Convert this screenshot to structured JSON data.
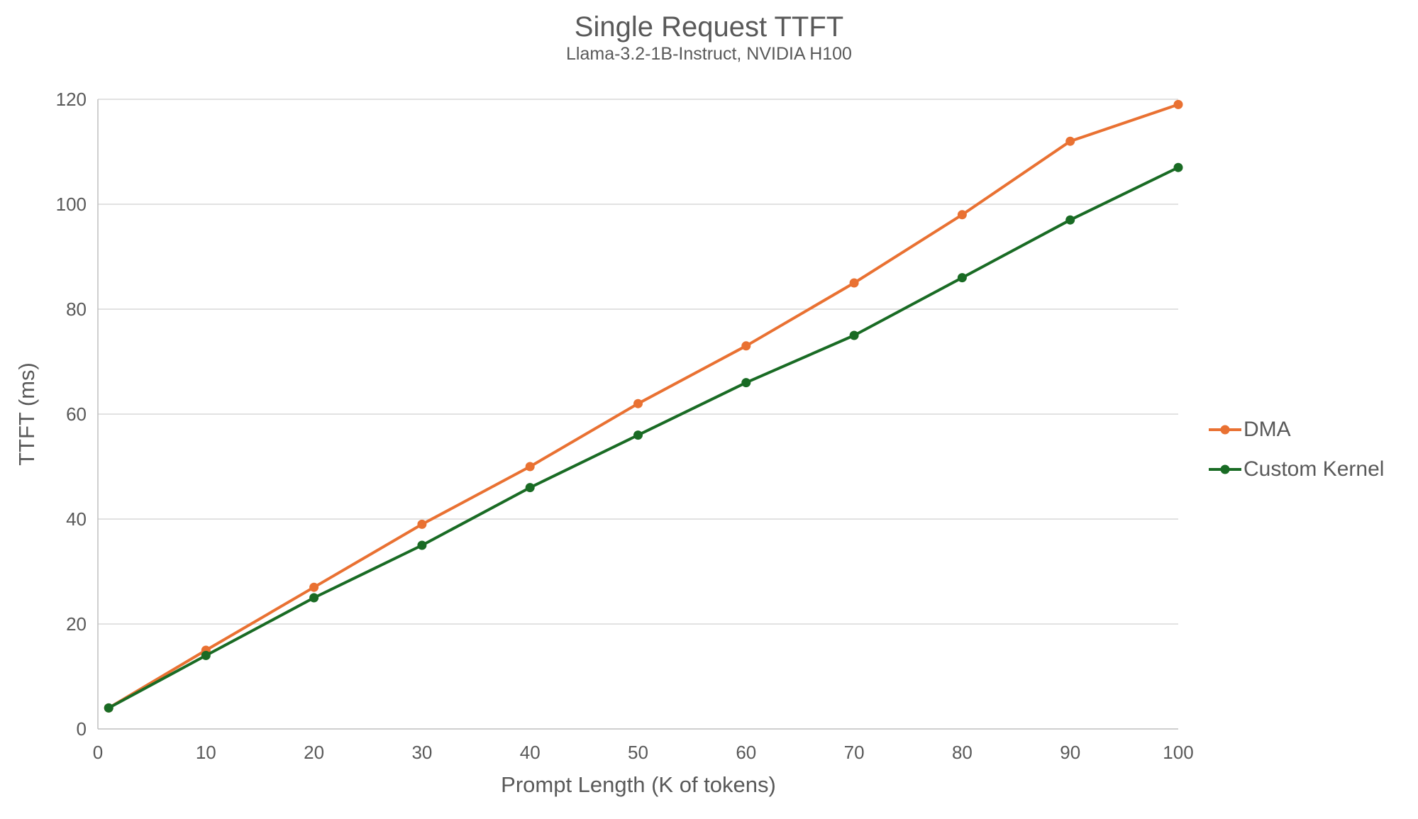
{
  "title": "Single Request TTFT",
  "subtitle": "Llama-3.2-1B-Instruct, NVIDIA H100",
  "chart_data": {
    "type": "line",
    "title": "Single Request TTFT",
    "subtitle": "Llama-3.2-1B-Instruct, NVIDIA H100",
    "xlabel": "Prompt Length (K of tokens)",
    "ylabel": "TTFT (ms)",
    "x": [
      1,
      10,
      20,
      30,
      40,
      50,
      60,
      70,
      80,
      90,
      100
    ],
    "series": [
      {
        "name": "DMA",
        "color": "#E97132",
        "values": [
          4,
          15,
          27,
          39,
          50,
          62,
          73,
          85,
          98,
          112,
          119
        ]
      },
      {
        "name": "Custom Kernel",
        "color": "#196B24",
        "values": [
          4,
          14,
          25,
          35,
          46,
          56,
          66,
          75,
          86,
          97,
          107
        ]
      }
    ],
    "xlim": [
      0,
      100
    ],
    "ylim": [
      0,
      120
    ],
    "x_ticks": [
      0,
      10,
      20,
      30,
      40,
      50,
      60,
      70,
      80,
      90,
      100
    ],
    "y_ticks": [
      0,
      20,
      40,
      60,
      80,
      100,
      120
    ],
    "grid": "horizontal",
    "legend_position": "right",
    "marker": "circle"
  },
  "colors": {
    "text": "#595959",
    "gridline": "#D9D9D9",
    "axis": "#BFBFBF",
    "background": "#FFFFFF",
    "dma": "#E97132",
    "custom_kernel": "#196B24"
  }
}
